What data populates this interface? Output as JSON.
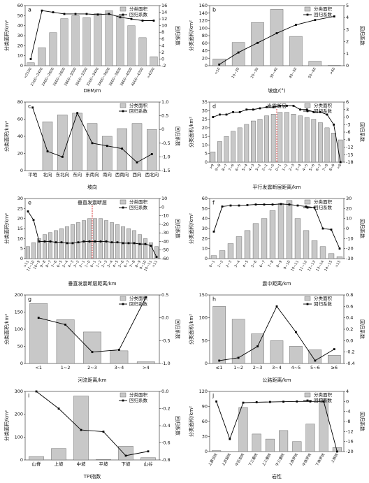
{
  "chart_data": [
    {
      "type": "bar-line",
      "label": "a",
      "xlabel": "DEM/m",
      "ylabel": "分类面积/km²",
      "y2label": "回归系数",
      "categories": [
        "<2100",
        "2100~2400",
        "2400~2600",
        "2600~2800",
        "2800~3000",
        "3000~3200",
        "3200~3400",
        "3400~3600",
        "3600~3800",
        "3800~4000",
        "4000~4200",
        ">4200"
      ],
      "series": [
        {
          "name": "分类面积",
          "color": "#c8c8c8",
          "values": [
            3,
            18,
            33,
            47,
            50,
            48,
            52,
            55,
            50,
            40,
            28,
            9
          ]
        },
        {
          "name": "回归系数",
          "color": "#000000",
          "axis": "y2",
          "values": [
            0,
            14.5,
            14,
            13.5,
            13.5,
            13.5,
            13.3,
            13.5,
            12.5,
            12,
            11.5,
            11.5
          ]
        }
      ],
      "ylim": [
        0,
        60
      ],
      "yticks": [
        0,
        10,
        20,
        30,
        40,
        50,
        60
      ],
      "y2lim": [
        -2,
        16
      ],
      "y2ticks": [
        -2,
        0,
        2,
        4,
        6,
        8,
        10,
        12,
        14,
        16
      ]
    },
    {
      "type": "bar-line",
      "label": "b",
      "xlabel": "坡度/(°)",
      "ylabel": "分类面积/km²",
      "y2label": "回归系数",
      "categories": [
        "<10",
        "10~20",
        "20~30",
        "30~40",
        "40~50",
        "50~60",
        ">60"
      ],
      "series": [
        {
          "name": "分类面积",
          "color": "#c8c8c8",
          "values": [
            18,
            62,
            115,
            150,
            78,
            12,
            1
          ]
        },
        {
          "name": "回归系数",
          "color": "#000000",
          "axis": "y2",
          "values": [
            0.1,
            1.1,
            1.9,
            2.7,
            3.4,
            3.8,
            4.1
          ]
        }
      ],
      "ylim": [
        0,
        160
      ],
      "yticks": [
        0,
        20,
        40,
        60,
        80,
        100,
        120,
        140,
        160
      ],
      "y2lim": [
        0,
        5
      ],
      "y2ticks": [
        0,
        1,
        2,
        3,
        4,
        5
      ]
    },
    {
      "type": "bar-line",
      "label": "c",
      "xlabel": "坡向",
      "ylabel": "分类面积/km²",
      "y2label": "回归系数",
      "categories": [
        "平地",
        "北向",
        "东北向",
        "东向",
        "东南向",
        "南向",
        "西南向",
        "西向",
        "西北向"
      ],
      "series": [
        {
          "name": "分类面积",
          "color": "#c8c8c8",
          "values": [
            0,
            57,
            65,
            67,
            55,
            40,
            49,
            55,
            48
          ]
        },
        {
          "name": "回归系数",
          "color": "#000000",
          "axis": "y2",
          "values": [
            0.8,
            -0.8,
            -1.0,
            0.6,
            -0.5,
            -0.6,
            -0.7,
            -1.2,
            -0.9
          ]
        }
      ],
      "ylim": [
        0,
        80
      ],
      "yticks": [
        0,
        20,
        40,
        60,
        80
      ],
      "y2lim": [
        -1.5,
        1.0
      ],
      "y2ticks": [
        -1.5,
        {
          "value": -1,
          "label": "-1.0"
        },
        -0.5,
        0,
        0.5,
        {
          "value": 1,
          "label": "1.0"
        }
      ]
    },
    {
      "type": "bar-line",
      "label": "d",
      "xlabel": "平行发震断层距离/km",
      "ylabel": "分类面积/km²",
      "y2label": "回归系数",
      "annotation": "发震断层",
      "categories": [
        ">9",
        "9~8",
        "8~7",
        "7~6",
        "6~5",
        "5~4",
        "4~3",
        "3~2",
        "2~1",
        "1~0",
        "0~1",
        "1~2",
        "2~3",
        "3~4",
        "4~5",
        "5~6",
        "6~7",
        "7~8",
        "8~9",
        ">9"
      ],
      "series": [
        {
          "name": "分类面积",
          "color": "#c8c8c8",
          "values": [
            6,
            12,
            15,
            18,
            20,
            22,
            24,
            25,
            27,
            28,
            29,
            29,
            28,
            27,
            26,
            25,
            23,
            20,
            17,
            13
          ]
        },
        {
          "name": "回归系数",
          "color": "#000000",
          "axis": "y2",
          "values": [
            0,
            1,
            1,
            2,
            2,
            3,
            3,
            3.5,
            4,
            4,
            4.5,
            4.5,
            4.5,
            3,
            3,
            2,
            2,
            1,
            -3,
            -18
          ]
        }
      ],
      "ylim": [
        0,
        35
      ],
      "yticks": [
        0,
        5,
        10,
        15,
        20,
        25,
        30,
        35
      ],
      "y2lim": [
        -18,
        6
      ],
      "y2ticks": [
        -18,
        -15,
        -12,
        -9,
        -6,
        -3,
        0,
        3,
        6
      ]
    },
    {
      "type": "bar-line",
      "label": "e",
      "xlabel": "垂直发震断层距离/km",
      "ylabel": "分类面积/km²",
      "y2label": "回归系数",
      "annotation": "垂直发震断层",
      "categories": [
        ">11",
        "11~10",
        "10~9",
        "9~8",
        "8~7",
        "7~6",
        "6~5",
        "5~4",
        "4~3",
        "3~2",
        "2~1",
        "1~0",
        "0~1",
        "1~2",
        "2~3",
        "3~4",
        "4~5",
        "5~6",
        "6~7",
        "7~8",
        "8~9",
        "9~10",
        "10~11",
        ">11"
      ],
      "series": [
        {
          "name": "分类面积",
          "color": "#c8c8c8",
          "values": [
            6,
            8,
            10,
            12,
            13,
            14,
            15,
            16,
            17,
            18,
            19,
            20,
            20,
            20,
            19,
            18,
            17,
            16,
            15,
            14,
            12,
            10,
            8,
            6
          ]
        },
        {
          "name": "回归系数",
          "color": "#000000",
          "axis": "y2",
          "values": [
            -5,
            -15,
            -40,
            -40,
            -40,
            -41,
            -41,
            -42,
            -42,
            -41,
            -40,
            -40,
            -40,
            -40,
            -40,
            -41,
            -41,
            -42,
            -42,
            -42,
            -43,
            -43,
            -45,
            -58
          ]
        }
      ],
      "ylim": [
        0,
        30
      ],
      "yticks": [
        0,
        5,
        10,
        15,
        20,
        25,
        30
      ],
      "y2lim": [
        -60,
        10
      ],
      "y2ticks": [
        -60,
        -50,
        -40,
        -30,
        -20,
        -10,
        0,
        10
      ]
    },
    {
      "type": "bar-line",
      "label": "f",
      "xlabel": "震中距离/km",
      "ylabel": "分类面积/km²",
      "y2label": "回归系数",
      "categories": [
        "0~1",
        "1~2",
        "2~3",
        "3~4",
        "4~5",
        "5~6",
        "6~7",
        "7~8",
        "8~9",
        "9~10",
        "10~11",
        "11~12",
        "12~13",
        "13~14",
        "14~15",
        ">15"
      ],
      "series": [
        {
          "name": "分类面积",
          "color": "#c8c8c8",
          "values": [
            3,
            8,
            15,
            22,
            28,
            35,
            40,
            48,
            55,
            58,
            40,
            28,
            18,
            12,
            5,
            2
          ]
        },
        {
          "name": "回归系数",
          "color": "#000000",
          "axis": "y2",
          "values": [
            -3,
            22,
            23,
            23,
            23.5,
            24,
            24,
            24,
            24.5,
            24,
            23,
            22,
            21,
            0,
            -1,
            -20
          ]
        }
      ],
      "ylim": [
        0,
        60
      ],
      "yticks": [
        0,
        10,
        20,
        30,
        40,
        50,
        60
      ],
      "y2lim": [
        -30,
        30
      ],
      "y2ticks": [
        -30,
        -20,
        -10,
        0,
        10,
        20,
        30
      ]
    },
    {
      "type": "bar-line",
      "label": "g",
      "xlabel": "河流距离/km",
      "ylabel": "分类面积/km²",
      "y2label": "回归系数",
      "categories": [
        "<1",
        "1~2",
        "2~3",
        "3~4",
        ">4"
      ],
      "series": [
        {
          "name": "分类面积",
          "color": "#c8c8c8",
          "values": [
            175,
            128,
            92,
            37,
            5
          ]
        },
        {
          "name": "回归系数",
          "color": "#000000",
          "axis": "y2",
          "values": [
            0,
            -0.15,
            -0.75,
            -0.7,
            0.45
          ]
        }
      ],
      "ylim": [
        0,
        200
      ],
      "yticks": [
        0,
        50,
        100,
        150,
        200
      ],
      "y2lim": [
        -1,
        0.5
      ],
      "y2ticks": [
        {
          "value": -1,
          "label": "-1.0"
        },
        -0.5,
        {
          "value": 0,
          "label": "0.0"
        },
        0.5
      ]
    },
    {
      "type": "bar-line",
      "label": "h",
      "xlabel": "公路距离/km",
      "ylabel": "分类面积/km²",
      "y2label": "回归系数",
      "categories": [
        "≤1",
        "1~2",
        "2~3",
        "3~4",
        "4~5",
        "5~6",
        "≥6"
      ],
      "series": [
        {
          "name": "分类面积",
          "color": "#c8c8c8",
          "values": [
            125,
            97,
            65,
            50,
            38,
            30,
            18
          ]
        },
        {
          "name": "回归系数",
          "color": "#000000",
          "axis": "y2",
          "values": [
            -0.35,
            -0.3,
            -0.1,
            0.6,
            0.15,
            -0.35,
            -0.15
          ]
        }
      ],
      "ylim": [
        0,
        150
      ],
      "yticks": [
        0,
        50,
        100,
        150
      ],
      "y2lim": [
        -0.4,
        0.8
      ],
      "y2ticks": [
        -0.4,
        -0.2,
        {
          "value": 0,
          "label": "0.0"
        },
        0.2,
        0.4,
        0.6,
        0.8
      ]
    },
    {
      "type": "bar-line",
      "label": "i",
      "xlabel": "TPI指数",
      "ylabel": "分类面积/km²",
      "y2label": "回归系数",
      "categories": [
        "山脊",
        "上坡",
        "中坡",
        "平坡",
        "下坡",
        "山谷"
      ],
      "series": [
        {
          "name": "分类面积",
          "color": "#c8c8c8",
          "values": [
            15,
            50,
            280,
            2,
            60,
            10
          ]
        },
        {
          "name": "回归系数",
          "color": "#000000",
          "axis": "y2",
          "values": [
            0,
            -0.2,
            -0.45,
            -0.47,
            -0.75,
            -0.7
          ]
        }
      ],
      "ylim": [
        0,
        300
      ],
      "yticks": [
        0,
        100,
        200,
        300
      ],
      "y2lim": [
        -0.8,
        0
      ],
      "y2ticks": [
        -0.8,
        -0.6,
        -0.4,
        -0.2,
        {
          "value": 0,
          "label": "0.0"
        }
      ]
    },
    {
      "type": "bar-line",
      "label": "j",
      "xlabel": "岩性",
      "ylabel": "分类面积/km²",
      "y2label": "回归系数",
      "categories": [
        "上震旦统",
        "上志留统",
        "中石炭统",
        "下三叠统",
        "上三叠统",
        "中三叠统",
        "上侏罗统",
        "中侏罗统",
        "下侏罗统",
        "上新统"
      ],
      "series": [
        {
          "name": "分类面积",
          "color": "#c8c8c8",
          "values": [
            2,
            0,
            88,
            35,
            25,
            42,
            20,
            55,
            105,
            8
          ]
        },
        {
          "name": "回归系数",
          "color": "#000000",
          "axis": "y2",
          "values": [
            0,
            -15,
            -0.5,
            -0.3,
            -0.2,
            -0.1,
            0,
            0,
            0,
            -20
          ]
        }
      ],
      "ylim": [
        0,
        120
      ],
      "yticks": [
        0,
        30,
        60,
        90,
        120
      ],
      "y2lim": [
        -20,
        4
      ],
      "y2ticks": [
        -20,
        -16,
        -12,
        -8,
        -4,
        0,
        4
      ]
    }
  ]
}
